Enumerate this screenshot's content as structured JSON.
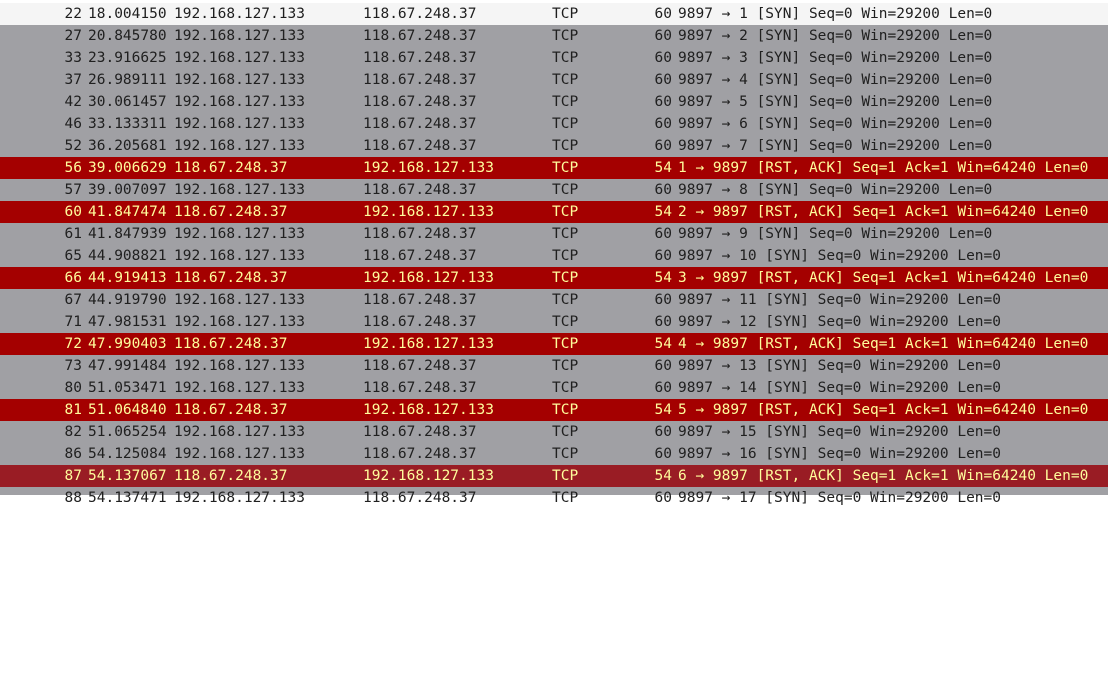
{
  "packet_list": {
    "rows": [
      {
        "no": "22",
        "time": "18.004150",
        "src": "192.168.127.133",
        "dst": "118.67.248.37",
        "proto": "TCP",
        "len": "60",
        "info": "9897 → 1 [SYN] Seq=0 Win=29200 Len=0",
        "kind": "selected"
      },
      {
        "no": "27",
        "time": "20.845780",
        "src": "192.168.127.133",
        "dst": "118.67.248.37",
        "proto": "TCP",
        "len": "60",
        "info": "9897 → 2 [SYN] Seq=0 Win=29200 Len=0",
        "kind": "syn"
      },
      {
        "no": "33",
        "time": "23.916625",
        "src": "192.168.127.133",
        "dst": "118.67.248.37",
        "proto": "TCP",
        "len": "60",
        "info": "9897 → 3 [SYN] Seq=0 Win=29200 Len=0",
        "kind": "syn"
      },
      {
        "no": "37",
        "time": "26.989111",
        "src": "192.168.127.133",
        "dst": "118.67.248.37",
        "proto": "TCP",
        "len": "60",
        "info": "9897 → 4 [SYN] Seq=0 Win=29200 Len=0",
        "kind": "syn"
      },
      {
        "no": "42",
        "time": "30.061457",
        "src": "192.168.127.133",
        "dst": "118.67.248.37",
        "proto": "TCP",
        "len": "60",
        "info": "9897 → 5 [SYN] Seq=0 Win=29200 Len=0",
        "kind": "syn"
      },
      {
        "no": "46",
        "time": "33.133311",
        "src": "192.168.127.133",
        "dst": "118.67.248.37",
        "proto": "TCP",
        "len": "60",
        "info": "9897 → 6 [SYN] Seq=0 Win=29200 Len=0",
        "kind": "syn"
      },
      {
        "no": "52",
        "time": "36.205681",
        "src": "192.168.127.133",
        "dst": "118.67.248.37",
        "proto": "TCP",
        "len": "60",
        "info": "9897 → 7 [SYN] Seq=0 Win=29200 Len=0",
        "kind": "syn"
      },
      {
        "no": "56",
        "time": "39.006629",
        "src": "118.67.248.37",
        "dst": "192.168.127.133",
        "proto": "TCP",
        "len": "54",
        "info": "1 → 9897 [RST, ACK] Seq=1 Ack=1 Win=64240 Len=0",
        "kind": "rst"
      },
      {
        "no": "57",
        "time": "39.007097",
        "src": "192.168.127.133",
        "dst": "118.67.248.37",
        "proto": "TCP",
        "len": "60",
        "info": "9897 → 8 [SYN] Seq=0 Win=29200 Len=0",
        "kind": "syn"
      },
      {
        "no": "60",
        "time": "41.847474",
        "src": "118.67.248.37",
        "dst": "192.168.127.133",
        "proto": "TCP",
        "len": "54",
        "info": "2 → 9897 [RST, ACK] Seq=1 Ack=1 Win=64240 Len=0",
        "kind": "rst"
      },
      {
        "no": "61",
        "time": "41.847939",
        "src": "192.168.127.133",
        "dst": "118.67.248.37",
        "proto": "TCP",
        "len": "60",
        "info": "9897 → 9 [SYN] Seq=0 Win=29200 Len=0",
        "kind": "syn"
      },
      {
        "no": "65",
        "time": "44.908821",
        "src": "192.168.127.133",
        "dst": "118.67.248.37",
        "proto": "TCP",
        "len": "60",
        "info": "9897 → 10 [SYN] Seq=0 Win=29200 Len=0",
        "kind": "syn"
      },
      {
        "no": "66",
        "time": "44.919413",
        "src": "118.67.248.37",
        "dst": "192.168.127.133",
        "proto": "TCP",
        "len": "54",
        "info": "3 → 9897 [RST, ACK] Seq=1 Ack=1 Win=64240 Len=0",
        "kind": "rst"
      },
      {
        "no": "67",
        "time": "44.919790",
        "src": "192.168.127.133",
        "dst": "118.67.248.37",
        "proto": "TCP",
        "len": "60",
        "info": "9897 → 11 [SYN] Seq=0 Win=29200 Len=0",
        "kind": "syn"
      },
      {
        "no": "71",
        "time": "47.981531",
        "src": "192.168.127.133",
        "dst": "118.67.248.37",
        "proto": "TCP",
        "len": "60",
        "info": "9897 → 12 [SYN] Seq=0 Win=29200 Len=0",
        "kind": "syn"
      },
      {
        "no": "72",
        "time": "47.990403",
        "src": "118.67.248.37",
        "dst": "192.168.127.133",
        "proto": "TCP",
        "len": "54",
        "info": "4 → 9897 [RST, ACK] Seq=1 Ack=1 Win=64240 Len=0",
        "kind": "rst"
      },
      {
        "no": "73",
        "time": "47.991484",
        "src": "192.168.127.133",
        "dst": "118.67.248.37",
        "proto": "TCP",
        "len": "60",
        "info": "9897 → 13 [SYN] Seq=0 Win=29200 Len=0",
        "kind": "syn"
      },
      {
        "no": "80",
        "time": "51.053471",
        "src": "192.168.127.133",
        "dst": "118.67.248.37",
        "proto": "TCP",
        "len": "60",
        "info": "9897 → 14 [SYN] Seq=0 Win=29200 Len=0",
        "kind": "syn"
      },
      {
        "no": "81",
        "time": "51.064840",
        "src": "118.67.248.37",
        "dst": "192.168.127.133",
        "proto": "TCP",
        "len": "54",
        "info": "5 → 9897 [RST, ACK] Seq=1 Ack=1 Win=64240 Len=0",
        "kind": "rst"
      },
      {
        "no": "82",
        "time": "51.065254",
        "src": "192.168.127.133",
        "dst": "118.67.248.37",
        "proto": "TCP",
        "len": "60",
        "info": "9897 → 15 [SYN] Seq=0 Win=29200 Len=0",
        "kind": "syn"
      },
      {
        "no": "86",
        "time": "54.125084",
        "src": "192.168.127.133",
        "dst": "118.67.248.37",
        "proto": "TCP",
        "len": "60",
        "info": "9897 → 16 [SYN] Seq=0 Win=29200 Len=0",
        "kind": "syn"
      },
      {
        "no": "87",
        "time": "54.137067",
        "src": "118.67.248.37",
        "dst": "192.168.127.133",
        "proto": "TCP",
        "len": "54",
        "info": "6 → 9897 [RST, ACK] Seq=1 Ack=1 Win=64240 Len=0",
        "kind": "rst current"
      },
      {
        "no": "88",
        "time": "54.137471",
        "src": "192.168.127.133",
        "dst": "118.67.248.37",
        "proto": "TCP",
        "len": "60",
        "info": "9897 → 17 [SYN] Seq=0 Win=29200 Len=0",
        "kind": "syn partial"
      }
    ]
  },
  "colors": {
    "syn_row_bg": "#a0a0a4",
    "rst_row_bg": "#a40000",
    "rst_row_fg": "#fffc9c",
    "selected_row_bg": "#f5f5f5"
  }
}
